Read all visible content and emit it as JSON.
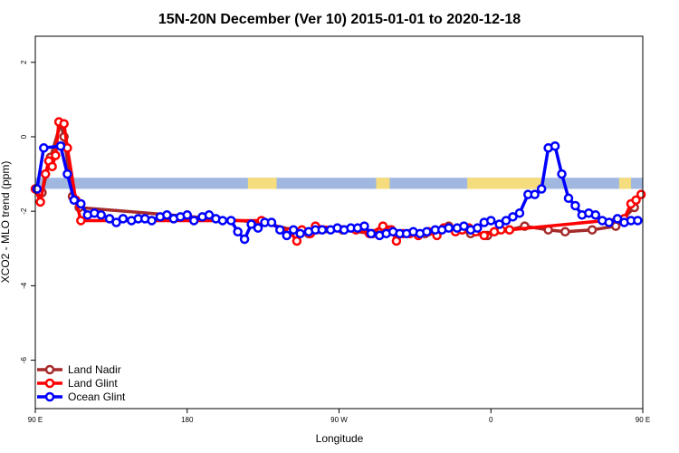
{
  "chart_data": {
    "type": "line",
    "title": "15N-20N December (Ver 10)   2015-01-01 to 2020-12-18",
    "xlabel": "Longitude",
    "ylabel": "XCO2 - MLO trend (ppm)",
    "xlim": [
      0,
      360
    ],
    "ylim": [
      -7.3,
      2.7
    ],
    "x_ticks": [
      {
        "value": 0,
        "label": "90 E"
      },
      {
        "value": 90,
        "label": "180"
      },
      {
        "value": 180,
        "label": "90 W"
      },
      {
        "value": 270,
        "label": "0"
      },
      {
        "value": 360,
        "label": "90 E"
      },
      {
        "value": 450,
        "label": "180"
      }
    ],
    "y_ticks": [
      -6,
      -4,
      -2,
      0,
      2
    ],
    "grid": false,
    "legend_position": "bottom-left",
    "land_band": {
      "y_top": -1.1,
      "y_bottom": -1.4,
      "ocean_color": "#a0b8e0",
      "land_color": "#f5dc7c",
      "land_segments": [
        [
          126,
          143
        ],
        [
          202,
          210
        ],
        [
          256,
          300
        ],
        [
          346,
          353
        ],
        [
          389,
          394
        ]
      ]
    },
    "series": [
      {
        "name": "Land Nadir",
        "color": "#a52a2a",
        "points": [
          [
            4,
            -1.5
          ],
          [
            9,
            -0.55
          ],
          [
            15,
            0.35
          ],
          [
            17,
            0.0
          ],
          [
            22,
            -1.6
          ],
          [
            26,
            -1.9
          ],
          [
            134,
            -2.3
          ],
          [
            162,
            -2.6
          ],
          [
            182,
            -2.5
          ],
          [
            200,
            -2.6
          ],
          [
            210,
            -2.5
          ],
          [
            231,
            -2.6
          ],
          [
            245,
            -2.4
          ],
          [
            258,
            -2.6
          ],
          [
            268,
            -2.65
          ],
          [
            281,
            -2.5
          ],
          [
            290,
            -2.4
          ],
          [
            304,
            -2.5
          ],
          [
            314,
            -2.55
          ],
          [
            330,
            -2.5
          ],
          [
            344,
            -2.4
          ],
          [
            355,
            -1.9
          ],
          [
            361,
            -1.6
          ],
          [
            365,
            -1.4
          ],
          [
            376,
            0.35
          ],
          [
            378,
            0.0
          ],
          [
            384,
            -1.5
          ],
          [
            390,
            -1.9
          ]
        ]
      },
      {
        "name": "Land Glint",
        "color": "#ff0000",
        "points": [
          [
            0,
            -1.4
          ],
          [
            3,
            -1.75
          ],
          [
            6,
            -1.0
          ],
          [
            8,
            -0.65
          ],
          [
            10,
            -0.8
          ],
          [
            12,
            -0.5
          ],
          [
            14,
            0.4
          ],
          [
            17,
            0.35
          ],
          [
            19,
            -0.3
          ],
          [
            24,
            -1.7
          ],
          [
            27,
            -2.25
          ],
          [
            134,
            -2.25
          ],
          [
            151,
            -2.55
          ],
          [
            155,
            -2.8
          ],
          [
            158,
            -2.5
          ],
          [
            163,
            -2.6
          ],
          [
            166,
            -2.4
          ],
          [
            190,
            -2.5
          ],
          [
            198,
            -2.6
          ],
          [
            206,
            -2.4
          ],
          [
            211,
            -2.5
          ],
          [
            214,
            -2.8
          ],
          [
            218,
            -2.6
          ],
          [
            222,
            -2.6
          ],
          [
            227,
            -2.65
          ],
          [
            233,
            -2.55
          ],
          [
            238,
            -2.65
          ],
          [
            242,
            -2.45
          ],
          [
            249,
            -2.55
          ],
          [
            253,
            -2.5
          ],
          [
            257,
            -2.45
          ],
          [
            261,
            -2.55
          ],
          [
            266,
            -2.65
          ],
          [
            272,
            -2.55
          ],
          [
            276,
            -2.5
          ],
          [
            281,
            -2.5
          ],
          [
            349,
            -2.2
          ],
          [
            353,
            -1.8
          ],
          [
            356,
            -1.7
          ],
          [
            359,
            -1.55
          ],
          [
            362,
            -1.95
          ],
          [
            365,
            -1.6
          ],
          [
            369,
            -1.45
          ],
          [
            371,
            -1.7
          ],
          [
            373,
            -0.75
          ],
          [
            375,
            -0.55
          ],
          [
            378,
            0.4
          ],
          [
            381,
            0.35
          ],
          [
            384,
            -0.95
          ],
          [
            388,
            -1.85
          ],
          [
            392,
            -2.25
          ]
        ]
      },
      {
        "name": "Ocean Glint",
        "color": "#0000ff",
        "points": [
          [
            1,
            -1.4
          ],
          [
            5,
            -0.3
          ],
          [
            15,
            -0.25
          ],
          [
            19,
            -1.0
          ],
          [
            23,
            -1.7
          ],
          [
            27,
            -1.8
          ],
          [
            31,
            -2.1
          ],
          [
            35,
            -2.05
          ],
          [
            39,
            -2.1
          ],
          [
            44,
            -2.2
          ],
          [
            48,
            -2.3
          ],
          [
            52,
            -2.2
          ],
          [
            57,
            -2.25
          ],
          [
            61,
            -2.2
          ],
          [
            65,
            -2.2
          ],
          [
            69,
            -2.25
          ],
          [
            74,
            -2.15
          ],
          [
            78,
            -2.1
          ],
          [
            82,
            -2.2
          ],
          [
            86,
            -2.15
          ],
          [
            90,
            -2.1
          ],
          [
            94,
            -2.25
          ],
          [
            99,
            -2.15
          ],
          [
            103,
            -2.1
          ],
          [
            107,
            -2.2
          ],
          [
            111,
            -2.25
          ],
          [
            116,
            -2.25
          ],
          [
            120,
            -2.55
          ],
          [
            124,
            -2.75
          ],
          [
            128,
            -2.35
          ],
          [
            132,
            -2.45
          ],
          [
            136,
            -2.3
          ],
          [
            140,
            -2.3
          ],
          [
            145,
            -2.5
          ],
          [
            149,
            -2.65
          ],
          [
            153,
            -2.5
          ],
          [
            157,
            -2.6
          ],
          [
            162,
            -2.55
          ],
          [
            166,
            -2.5
          ],
          [
            170,
            -2.5
          ],
          [
            175,
            -2.5
          ],
          [
            179,
            -2.45
          ],
          [
            183,
            -2.5
          ],
          [
            187,
            -2.45
          ],
          [
            191,
            -2.45
          ],
          [
            195,
            -2.4
          ],
          [
            199,
            -2.6
          ],
          [
            204,
            -2.65
          ],
          [
            208,
            -2.6
          ],
          [
            212,
            -2.55
          ],
          [
            216,
            -2.6
          ],
          [
            220,
            -2.6
          ],
          [
            224,
            -2.55
          ],
          [
            228,
            -2.6
          ],
          [
            232,
            -2.55
          ],
          [
            237,
            -2.5
          ],
          [
            241,
            -2.5
          ],
          [
            245,
            -2.45
          ],
          [
            250,
            -2.45
          ],
          [
            254,
            -2.4
          ],
          [
            258,
            -2.5
          ],
          [
            262,
            -2.45
          ],
          [
            266,
            -2.3
          ],
          [
            270,
            -2.25
          ],
          [
            275,
            -2.35
          ],
          [
            279,
            -2.25
          ],
          [
            283,
            -2.15
          ],
          [
            287,
            -2.05
          ],
          [
            292,
            -1.55
          ],
          [
            296,
            -1.55
          ],
          [
            300,
            -1.4
          ],
          [
            304,
            -0.3
          ],
          [
            308,
            -0.25
          ],
          [
            312,
            -1.0
          ],
          [
            316,
            -1.65
          ],
          [
            320,
            -1.85
          ],
          [
            324,
            -2.1
          ],
          [
            328,
            -2.05
          ],
          [
            332,
            -2.1
          ],
          [
            336,
            -2.25
          ],
          [
            340,
            -2.3
          ],
          [
            345,
            -2.2
          ],
          [
            349,
            -2.3
          ],
          [
            353,
            -2.25
          ],
          [
            357,
            -2.25
          ],
          [
            361,
            -2.2
          ],
          [
            365,
            -2.25
          ],
          [
            369,
            -2.3
          ]
        ]
      }
    ]
  }
}
